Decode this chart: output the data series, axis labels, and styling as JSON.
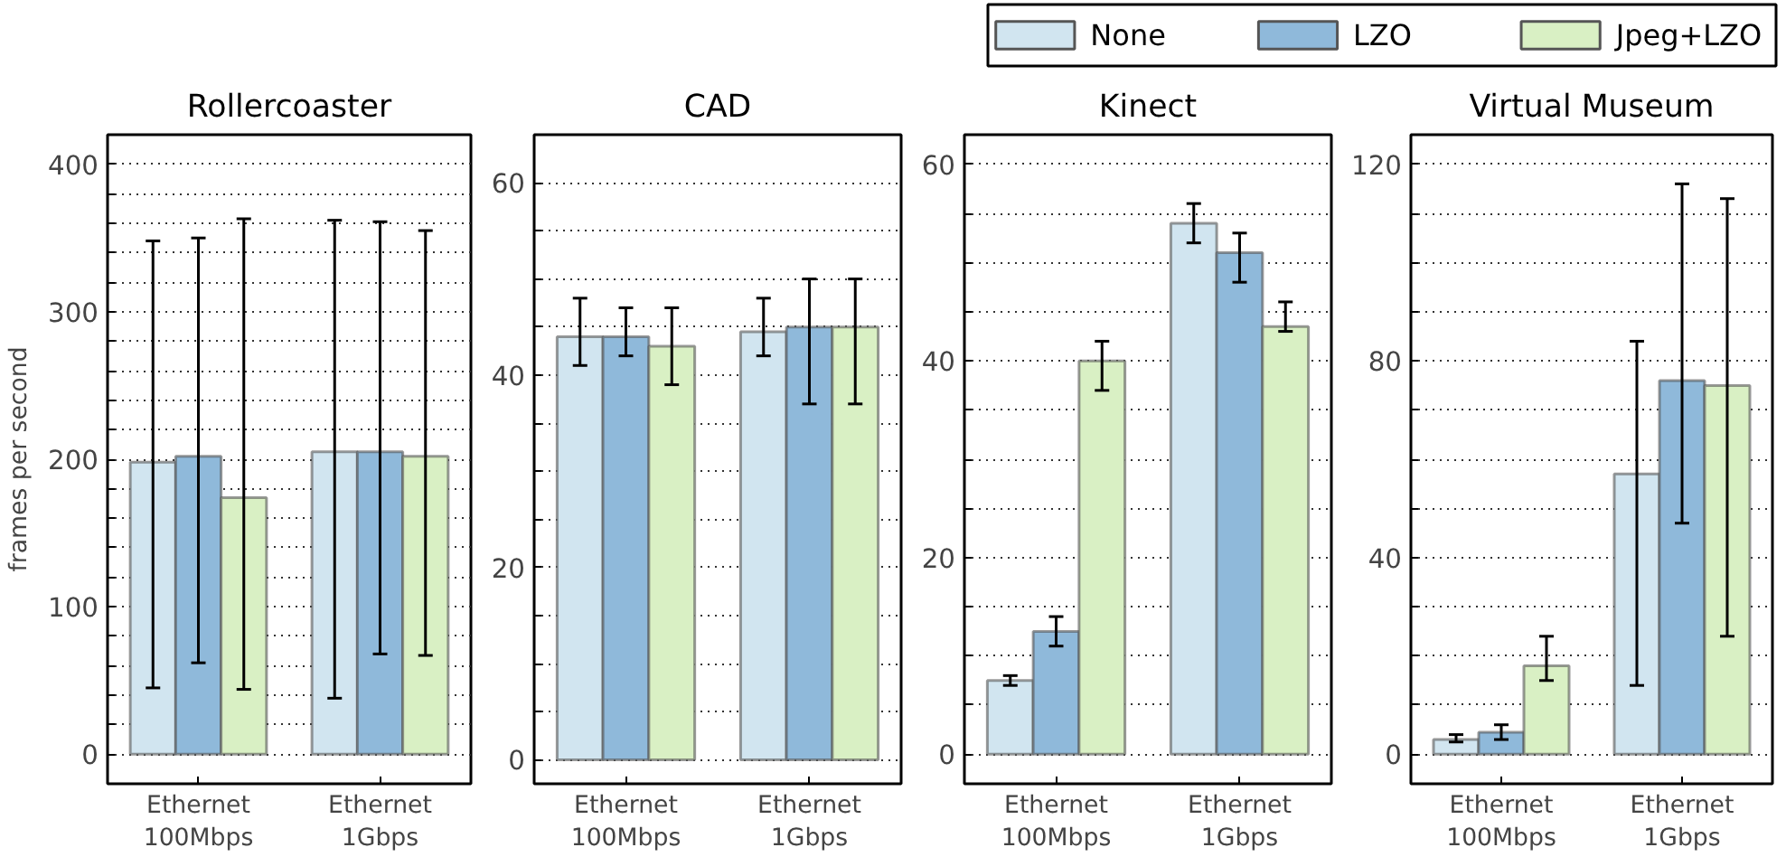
{
  "chart_data": [
    {
      "type": "bar",
      "title": "Rollercoaster",
      "ylabel": "frames per second",
      "categories": [
        "Ethernet\n100Mbps",
        "Ethernet\n1Gbps"
      ],
      "ylim": [
        -20,
        420
      ],
      "yticks": [
        0,
        {
          "value": 20,
          "label": null
        },
        {
          "value": 40,
          "label": null
        },
        {
          "value": 60,
          "label": null
        },
        {
          "value": 80,
          "label": null
        },
        100,
        {
          "value": 120,
          "label": null
        },
        {
          "value": 140,
          "label": null
        },
        {
          "value": 160,
          "label": null
        },
        {
          "value": 180,
          "label": null
        },
        200,
        {
          "value": 220,
          "label": null
        },
        {
          "value": 240,
          "label": null
        },
        {
          "value": 260,
          "label": null
        },
        {
          "value": 280,
          "label": null
        },
        300,
        {
          "value": 320,
          "label": null
        },
        {
          "value": 340,
          "label": null
        },
        {
          "value": 360,
          "label": null
        },
        {
          "value": 380,
          "label": null
        },
        400
      ],
      "grid": "y",
      "series": [
        {
          "color": "#d1e5f0",
          "values": [
            198,
            205
          ],
          "errors": [
            [
              45,
              348
            ],
            [
              38,
              362
            ]
          ]
        },
        {
          "color": "#8fb9da",
          "values": [
            202,
            205
          ],
          "errors": [
            [
              62,
              350
            ],
            [
              68,
              361
            ]
          ]
        },
        {
          "color": "#d9f0c4",
          "values": [
            174,
            202
          ],
          "errors": [
            [
              44,
              363
            ],
            [
              67,
              355
            ]
          ]
        }
      ]
    },
    {
      "type": "bar",
      "title": "CAD",
      "categories": [
        "Ethernet\n100Mbps",
        "Ethernet\n1Gbps"
      ],
      "ylim": [
        -2.5,
        65
      ],
      "yticks": [
        0,
        {
          "value": 5,
          "label": null
        },
        {
          "value": 10,
          "label": null
        },
        {
          "value": 15,
          "label": null
        },
        20,
        {
          "value": 25,
          "label": null
        },
        {
          "value": 30,
          "label": null
        },
        {
          "value": 35,
          "label": null
        },
        40,
        {
          "value": 45,
          "label": null
        },
        {
          "value": 50,
          "label": null
        },
        {
          "value": 55,
          "label": null
        },
        60
      ],
      "grid": "y",
      "series": [
        {
          "color": "#d1e5f0",
          "values": [
            44,
            44.5
          ],
          "errors": [
            [
              41,
              48
            ],
            [
              42,
              48
            ]
          ]
        },
        {
          "color": "#8fb9da",
          "values": [
            44,
            45
          ],
          "errors": [
            [
              42,
              47
            ],
            [
              37,
              50
            ]
          ]
        },
        {
          "color": "#d9f0c4",
          "values": [
            43,
            45
          ],
          "errors": [
            [
              39,
              47
            ],
            [
              37,
              50
            ]
          ]
        }
      ]
    },
    {
      "type": "bar",
      "title": "Kinect",
      "categories": [
        "Ethernet\n100Mbps",
        "Ethernet\n1Gbps"
      ],
      "ylim": [
        -3,
        63
      ],
      "yticks": [
        0,
        {
          "value": 5,
          "label": null
        },
        {
          "value": 10,
          "label": null
        },
        {
          "value": 15,
          "label": null
        },
        20,
        {
          "value": 25,
          "label": null
        },
        {
          "value": 30,
          "label": null
        },
        {
          "value": 35,
          "label": null
        },
        40,
        {
          "value": 45,
          "label": null
        },
        {
          "value": 50,
          "label": null
        },
        {
          "value": 55,
          "label": null
        },
        60
      ],
      "grid": "y",
      "legend": "top right",
      "series": [
        {
          "name": "None",
          "color": "#d1e5f0",
          "values": [
            7.5,
            54
          ],
          "errors": [
            [
              7,
              8
            ],
            [
              52,
              56
            ]
          ]
        },
        {
          "name": "LZO",
          "color": "#8fb9da",
          "values": [
            12.5,
            51
          ],
          "errors": [
            [
              11,
              14
            ],
            [
              48,
              53
            ]
          ]
        },
        {
          "name": "Jpeg+LZO",
          "color": "#d9f0c4",
          "values": [
            40,
            43.5
          ],
          "errors": [
            [
              37,
              42
            ],
            [
              43,
              46
            ]
          ]
        }
      ]
    },
    {
      "type": "bar",
      "title": "Virtual Museum",
      "categories": [
        "Ethernet\n100Mbps",
        "Ethernet\n1Gbps"
      ],
      "ylim": [
        -6,
        126
      ],
      "yticks": [
        0,
        {
          "value": 10,
          "label": null
        },
        {
          "value": 20,
          "label": null
        },
        {
          "value": 30,
          "label": null
        },
        40,
        {
          "value": 50,
          "label": null
        },
        {
          "value": 60,
          "label": null
        },
        {
          "value": 70,
          "label": null
        },
        80,
        {
          "value": 90,
          "label": null
        },
        {
          "value": 100,
          "label": null
        },
        {
          "value": 110,
          "label": null
        },
        120
      ],
      "grid": "y",
      "series": [
        {
          "color": "#d1e5f0",
          "values": [
            3,
            57
          ],
          "errors": [
            [
              2.5,
              4
            ],
            [
              14,
              84
            ]
          ]
        },
        {
          "color": "#8fb9da",
          "values": [
            4.5,
            76
          ],
          "errors": [
            [
              3,
              6
            ],
            [
              47,
              116
            ]
          ]
        },
        {
          "color": "#d9f0c4",
          "values": [
            18,
            75
          ],
          "errors": [
            [
              15,
              24
            ],
            [
              24,
              113
            ]
          ]
        }
      ]
    }
  ]
}
